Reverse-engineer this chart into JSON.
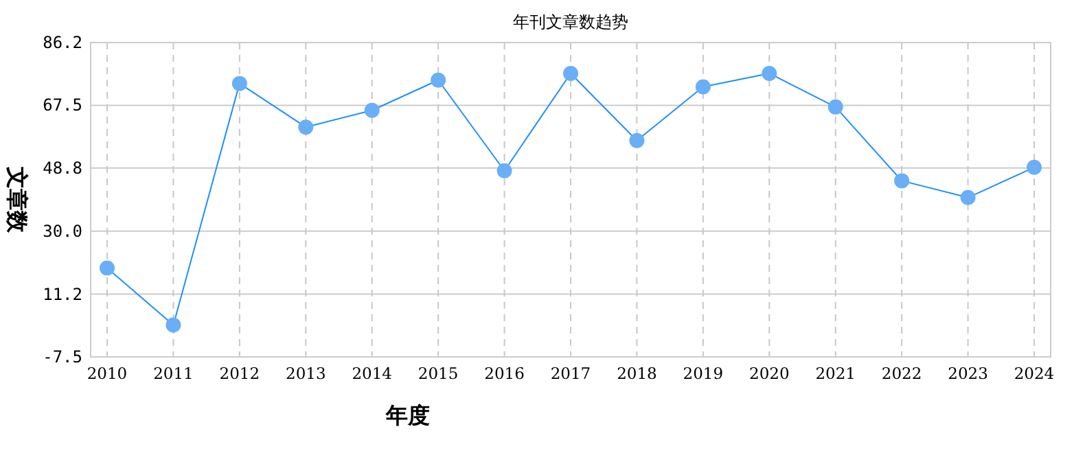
{
  "chart_data": {
    "type": "line",
    "title": "年刊文章数趋势",
    "xlabel": "年度",
    "ylabel": "文章数",
    "categories": [
      "2010",
      "2011",
      "2012",
      "2013",
      "2014",
      "2015",
      "2016",
      "2017",
      "2018",
      "2019",
      "2020",
      "2021",
      "2022",
      "2023",
      "2024"
    ],
    "series": [
      {
        "color": "#1e90ff",
        "values": [
          19,
          2,
          74,
          61,
          66,
          75,
          48,
          77,
          57,
          73,
          77,
          67,
          45,
          40,
          49
        ]
      }
    ],
    "ylim": [
      -7.5,
      86.2
    ],
    "yticks": [
      {
        "value": -7.5,
        "label": "-7.5"
      },
      {
        "value": 11.2,
        "label": "11.2"
      },
      {
        "value": 30.0,
        "label": "30.0"
      },
      {
        "value": 48.8,
        "label": "48.8"
      },
      {
        "value": 67.5,
        "label": "67.5"
      },
      {
        "value": 86.2,
        "label": "86.2"
      }
    ],
    "grid": true,
    "marker": "circle",
    "line_style": "solid"
  }
}
